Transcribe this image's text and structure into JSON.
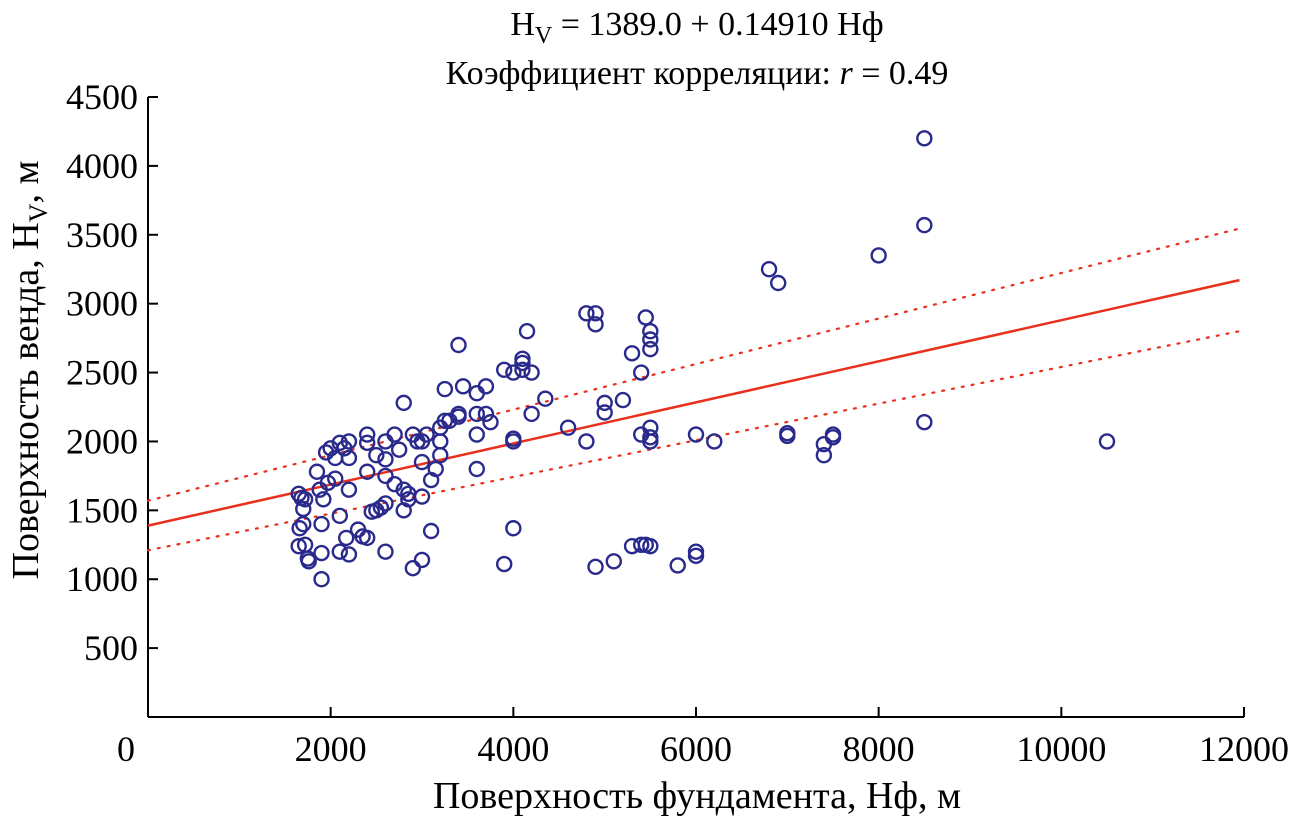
{
  "chart_data": {
    "type": "scatter",
    "title": {
      "equation_left": "H",
      "equation_left_sub": "V",
      "equation_right": " = 1389.0 + 0.14910 Нф",
      "correlation_text": "Коэффициент корреляции: ",
      "correlation_symbol": "r",
      "correlation_value": " = 0.49"
    },
    "xlabel": "Поверхность фундамента, Нф, м",
    "ylabel": {
      "prefix": "Поверхность венда, H",
      "sub": "V",
      "suffix": ", м"
    },
    "xlim": [
      0,
      12000
    ],
    "ylim": [
      0,
      4500
    ],
    "x_ticks": [
      0,
      2000,
      4000,
      6000,
      8000,
      10000,
      12000
    ],
    "x_tick_labels": [
      "0",
      "2000",
      "4000",
      "6000",
      "8000",
      "10000",
      "12000"
    ],
    "y_ticks": [
      500,
      1000,
      1500,
      2000,
      2500,
      3000,
      3500,
      4000,
      4500
    ],
    "y_tick_labels": [
      "500",
      "1000",
      "1500",
      "2000",
      "2500",
      "3000",
      "3500",
      "4000",
      "4500"
    ],
    "colors": {
      "points": "#2a2a8c",
      "regression": "#e8301c",
      "confidence": "#e8301c",
      "axes": "#000000"
    },
    "regression": {
      "intercept": 1389.0,
      "slope": 0.1491,
      "x_range": [
        0,
        11950
      ]
    },
    "confidence_band": {
      "upper": [
        [
          0,
          1570
        ],
        [
          11950,
          3545
        ]
      ],
      "lower": [
        [
          0,
          1210
        ],
        [
          11950,
          2800
        ]
      ]
    },
    "points": [
      [
        1650,
        1620
      ],
      [
        1680,
        1590
      ],
      [
        1700,
        1510
      ],
      [
        1720,
        1580
      ],
      [
        1660,
        1370
      ],
      [
        1700,
        1400
      ],
      [
        1650,
        1240
      ],
      [
        1720,
        1250
      ],
      [
        1750,
        1150
      ],
      [
        1760,
        1130
      ],
      [
        1850,
        1780
      ],
      [
        1880,
        1650
      ],
      [
        1900,
        1400
      ],
      [
        1920,
        1580
      ],
      [
        1900,
        1190
      ],
      [
        1900,
        1000
      ],
      [
        1950,
        1920
      ],
      [
        1970,
        1700
      ],
      [
        2000,
        1950
      ],
      [
        2050,
        1880
      ],
      [
        2050,
        1730
      ],
      [
        2100,
        1990
      ],
      [
        2100,
        1460
      ],
      [
        2100,
        1200
      ],
      [
        2150,
        1950
      ],
      [
        2170,
        1300
      ],
      [
        2200,
        1880
      ],
      [
        2200,
        1650
      ],
      [
        2200,
        1180
      ],
      [
        2200,
        2000
      ],
      [
        2300,
        1360
      ],
      [
        2350,
        1310
      ],
      [
        2400,
        2050
      ],
      [
        2400,
        1990
      ],
      [
        2400,
        1780
      ],
      [
        2400,
        1300
      ],
      [
        2450,
        1490
      ],
      [
        2500,
        1900
      ],
      [
        2500,
        1500
      ],
      [
        2550,
        1520
      ],
      [
        2600,
        2000
      ],
      [
        2600,
        1870
      ],
      [
        2600,
        1750
      ],
      [
        2600,
        1550
      ],
      [
        2600,
        1200
      ],
      [
        2700,
        2050
      ],
      [
        2700,
        1690
      ],
      [
        2750,
        1940
      ],
      [
        2800,
        2280
      ],
      [
        2800,
        1650
      ],
      [
        2800,
        1500
      ],
      [
        2850,
        1580
      ],
      [
        2850,
        1620
      ],
      [
        2900,
        2050
      ],
      [
        2900,
        1080
      ],
      [
        2950,
        2000
      ],
      [
        3000,
        2000
      ],
      [
        3000,
        1850
      ],
      [
        3000,
        1600
      ],
      [
        3000,
        1140
      ],
      [
        3050,
        2050
      ],
      [
        3100,
        1720
      ],
      [
        3100,
        1350
      ],
      [
        3150,
        1800
      ],
      [
        3200,
        2100
      ],
      [
        3200,
        2000
      ],
      [
        3200,
        1900
      ],
      [
        3250,
        2150
      ],
      [
        3250,
        2380
      ],
      [
        3300,
        2150
      ],
      [
        3400,
        2700
      ],
      [
        3400,
        2200
      ],
      [
        3400,
        2180
      ],
      [
        3450,
        2400
      ],
      [
        3600,
        2350
      ],
      [
        3600,
        2200
      ],
      [
        3600,
        2050
      ],
      [
        3600,
        1800
      ],
      [
        3700,
        2400
      ],
      [
        3700,
        2200
      ],
      [
        3750,
        2140
      ],
      [
        3900,
        2520
      ],
      [
        3900,
        1110
      ],
      [
        4000,
        2500
      ],
      [
        4000,
        2000
      ],
      [
        4000,
        2020
      ],
      [
        4000,
        1370
      ],
      [
        4100,
        2600
      ],
      [
        4100,
        2570
      ],
      [
        4100,
        2520
      ],
      [
        4150,
        2800
      ],
      [
        4200,
        2500
      ],
      [
        4200,
        2200
      ],
      [
        4350,
        2310
      ],
      [
        4600,
        2100
      ],
      [
        4800,
        2930
      ],
      [
        4800,
        2000
      ],
      [
        4900,
        2930
      ],
      [
        4900,
        2850
      ],
      [
        4900,
        1090
      ],
      [
        5000,
        2280
      ],
      [
        5000,
        2210
      ],
      [
        5100,
        1130
      ],
      [
        5200,
        2300
      ],
      [
        5300,
        2640
      ],
      [
        5300,
        1240
      ],
      [
        5400,
        2500
      ],
      [
        5400,
        2050
      ],
      [
        5400,
        1250
      ],
      [
        5450,
        1250
      ],
      [
        5450,
        2900
      ],
      [
        5500,
        2800
      ],
      [
        5500,
        2740
      ],
      [
        5500,
        2670
      ],
      [
        5500,
        2100
      ],
      [
        5500,
        2030
      ],
      [
        5500,
        2000
      ],
      [
        5500,
        1240
      ],
      [
        5800,
        1100
      ],
      [
        6000,
        2050
      ],
      [
        6000,
        1200
      ],
      [
        6000,
        1170
      ],
      [
        6200,
        2000
      ],
      [
        6800,
        3250
      ],
      [
        6900,
        3150
      ],
      [
        7000,
        2060
      ],
      [
        7000,
        2040
      ],
      [
        7400,
        1980
      ],
      [
        7400,
        1900
      ],
      [
        7500,
        2050
      ],
      [
        7500,
        2030
      ],
      [
        8000,
        3350
      ],
      [
        8500,
        4200
      ],
      [
        8500,
        3570
      ],
      [
        8500,
        2140
      ],
      [
        10500,
        2000
      ]
    ]
  }
}
